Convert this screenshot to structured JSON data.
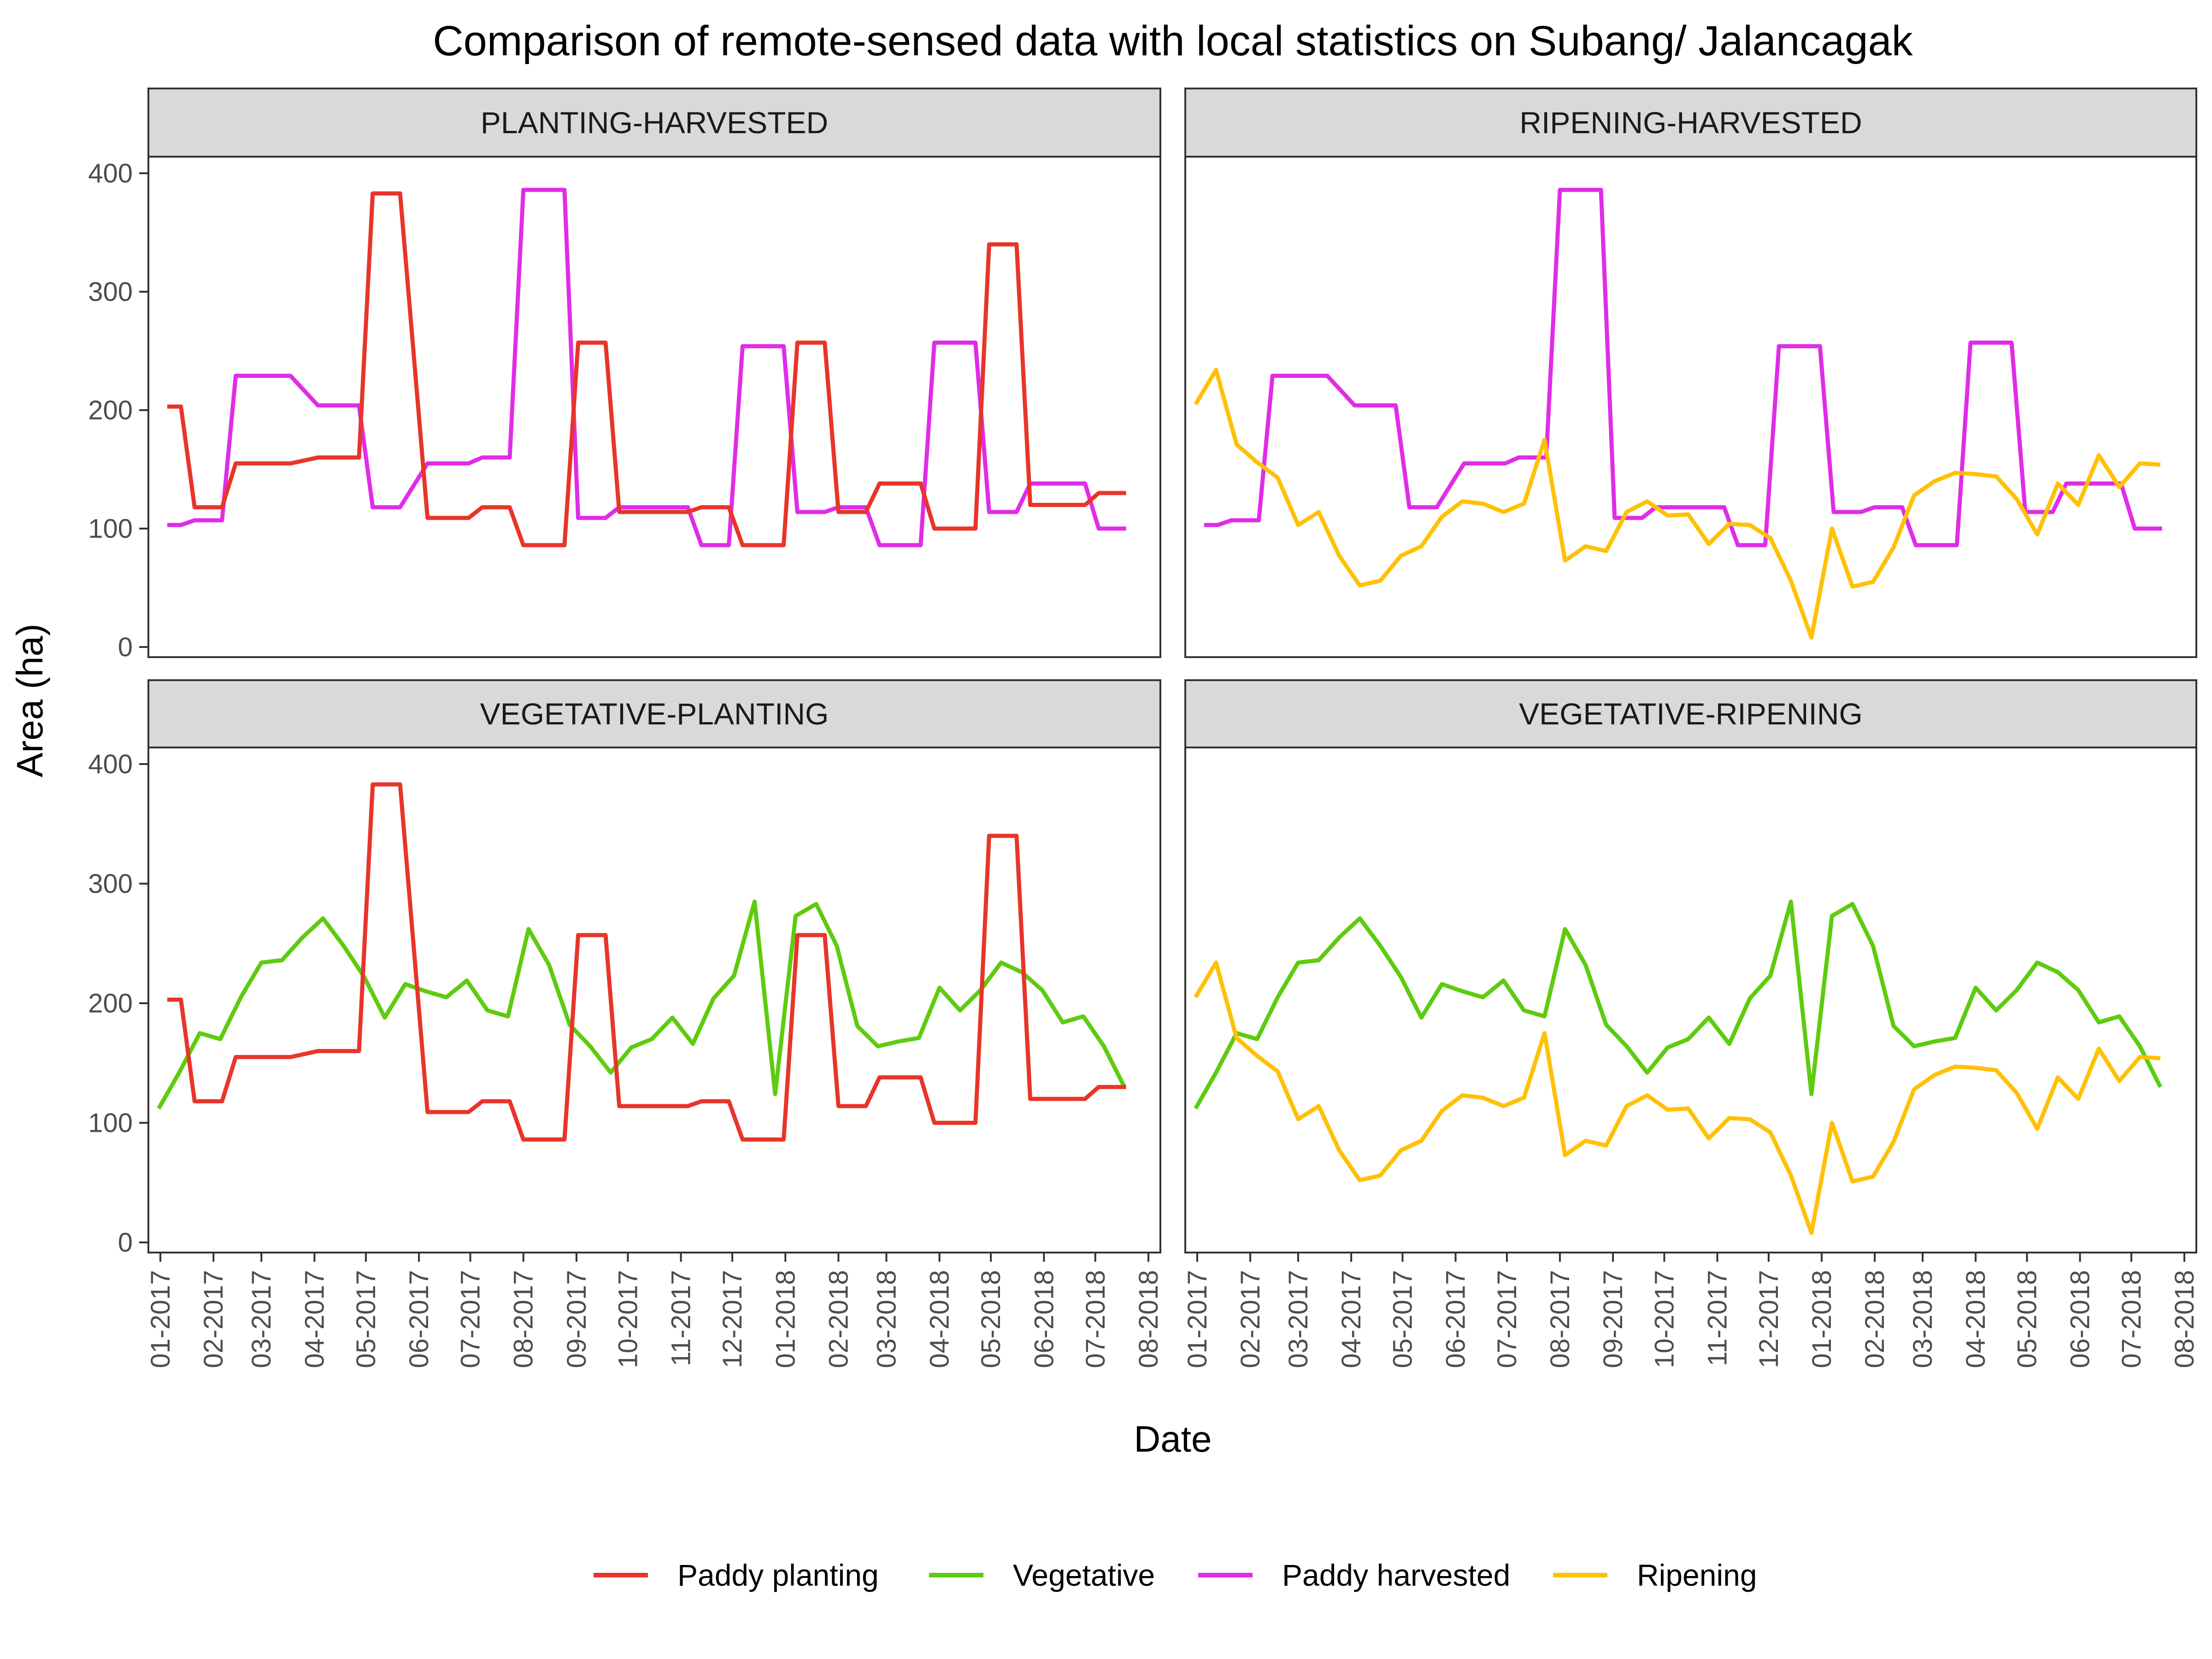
{
  "chart_data": {
    "type": "line",
    "title": "Comparison of remote-sensed data with local statistics on Subang/ Jalancagak",
    "xlabel": "Date",
    "ylabel": "Area (ha)",
    "ylim": [
      0,
      400
    ],
    "yticks": [
      0,
      100,
      200,
      300,
      400
    ],
    "xlim": [
      "2016-12-25",
      "2018-08-08"
    ],
    "xtick_labels": [
      "01-2017",
      "02-2017",
      "03-2017",
      "04-2017",
      "05-2017",
      "06-2017",
      "07-2017",
      "08-2017",
      "09-2017",
      "10-2017",
      "11-2017",
      "12-2017",
      "01-2018",
      "02-2018",
      "03-2018",
      "04-2018",
      "05-2018",
      "06-2018",
      "07-2018",
      "08-2018"
    ],
    "xtick_dates": [
      "2017-01-01",
      "2017-02-01",
      "2017-03-01",
      "2017-04-01",
      "2017-05-01",
      "2017-06-01",
      "2017-07-01",
      "2017-08-01",
      "2017-09-01",
      "2017-10-01",
      "2017-11-01",
      "2017-12-01",
      "2018-01-01",
      "2018-02-01",
      "2018-03-01",
      "2018-04-01",
      "2018-05-01",
      "2018-06-01",
      "2018-07-01",
      "2018-08-01"
    ],
    "grid": false,
    "legend_position": "bottom",
    "series": [
      {
        "name": "Paddy planting",
        "color": "#E8352A",
        "points": [
          [
            "2017-01-05",
            203
          ],
          [
            "2017-01-13",
            203
          ],
          [
            "2017-01-21",
            118
          ],
          [
            "2017-02-06",
            118
          ],
          [
            "2017-02-14",
            155
          ],
          [
            "2017-03-18",
            155
          ],
          [
            "2017-04-03",
            160
          ],
          [
            "2017-04-27",
            160
          ],
          [
            "2017-05-05",
            383
          ],
          [
            "2017-05-21",
            383
          ],
          [
            "2017-06-06",
            109
          ],
          [
            "2017-06-30",
            109
          ],
          [
            "2017-07-08",
            118
          ],
          [
            "2017-07-24",
            118
          ],
          [
            "2017-08-01",
            86
          ],
          [
            "2017-08-25",
            86
          ],
          [
            "2017-09-02",
            257
          ],
          [
            "2017-09-18",
            257
          ],
          [
            "2017-09-26",
            114
          ],
          [
            "2017-11-05",
            114
          ],
          [
            "2017-11-13",
            118
          ],
          [
            "2017-11-29",
            118
          ],
          [
            "2017-12-07",
            86
          ],
          [
            "2017-12-31",
            86
          ],
          [
            "2018-01-08",
            257
          ],
          [
            "2018-01-24",
            257
          ],
          [
            "2018-02-01",
            114
          ],
          [
            "2018-02-17",
            114
          ],
          [
            "2018-02-25",
            138
          ],
          [
            "2018-03-21",
            138
          ],
          [
            "2018-03-29",
            100
          ],
          [
            "2018-04-22",
            100
          ],
          [
            "2018-04-30",
            340
          ],
          [
            "2018-05-16",
            340
          ],
          [
            "2018-05-24",
            120
          ],
          [
            "2018-06-25",
            120
          ],
          [
            "2018-07-03",
            130
          ],
          [
            "2018-07-19",
            130
          ]
        ]
      },
      {
        "name": "Vegetative",
        "color": "#5ECB0F",
        "points": [
          [
            "2016-12-31",
            112
          ],
          [
            "2017-01-12",
            142
          ],
          [
            "2017-01-24",
            175
          ],
          [
            "2017-02-05",
            170
          ],
          [
            "2017-02-17",
            205
          ],
          [
            "2017-03-01",
            234
          ],
          [
            "2017-03-13",
            236
          ],
          [
            "2017-03-25",
            255
          ],
          [
            "2017-04-06",
            271
          ],
          [
            "2017-04-18",
            248
          ],
          [
            "2017-04-30",
            222
          ],
          [
            "2017-05-12",
            188
          ],
          [
            "2017-05-24",
            216
          ],
          [
            "2017-06-05",
            210
          ],
          [
            "2017-06-17",
            205
          ],
          [
            "2017-06-29",
            219
          ],
          [
            "2017-07-11",
            194
          ],
          [
            "2017-07-23",
            189
          ],
          [
            "2017-08-04",
            262
          ],
          [
            "2017-08-16",
            232
          ],
          [
            "2017-08-28",
            182
          ],
          [
            "2017-09-09",
            164
          ],
          [
            "2017-09-21",
            142
          ],
          [
            "2017-10-03",
            163
          ],
          [
            "2017-10-15",
            170
          ],
          [
            "2017-10-27",
            188
          ],
          [
            "2017-11-08",
            166
          ],
          [
            "2017-11-20",
            204
          ],
          [
            "2017-12-02",
            223
          ],
          [
            "2017-12-14",
            285
          ],
          [
            "2017-12-26",
            124
          ],
          [
            "2018-01-07",
            273
          ],
          [
            "2018-01-19",
            283
          ],
          [
            "2018-01-31",
            248
          ],
          [
            "2018-02-12",
            181
          ],
          [
            "2018-02-24",
            164
          ],
          [
            "2018-03-08",
            168
          ],
          [
            "2018-03-20",
            171
          ],
          [
            "2018-04-01",
            213
          ],
          [
            "2018-04-13",
            194
          ],
          [
            "2018-04-25",
            211
          ],
          [
            "2018-05-07",
            234
          ],
          [
            "2018-05-19",
            226
          ],
          [
            "2018-05-31",
            211
          ],
          [
            "2018-06-12",
            184
          ],
          [
            "2018-06-24",
            189
          ],
          [
            "2018-07-06",
            164
          ],
          [
            "2018-07-18",
            130
          ]
        ]
      },
      {
        "name": "Paddy harvested",
        "color": "#E02CE8",
        "points": [
          [
            "2017-01-05",
            103
          ],
          [
            "2017-01-13",
            103
          ],
          [
            "2017-01-21",
            107
          ],
          [
            "2017-02-06",
            107
          ],
          [
            "2017-02-14",
            229
          ],
          [
            "2017-03-18",
            229
          ],
          [
            "2017-04-03",
            204
          ],
          [
            "2017-04-27",
            204
          ],
          [
            "2017-05-05",
            118
          ],
          [
            "2017-05-21",
            118
          ],
          [
            "2017-06-06",
            155
          ],
          [
            "2017-06-30",
            155
          ],
          [
            "2017-07-08",
            160
          ],
          [
            "2017-07-24",
            160
          ],
          [
            "2017-08-01",
            386
          ],
          [
            "2017-08-25",
            386
          ],
          [
            "2017-09-02",
            109
          ],
          [
            "2017-09-18",
            109
          ],
          [
            "2017-09-26",
            118
          ],
          [
            "2017-11-05",
            118
          ],
          [
            "2017-11-13",
            86
          ],
          [
            "2017-11-29",
            86
          ],
          [
            "2017-12-07",
            254
          ],
          [
            "2017-12-31",
            254
          ],
          [
            "2018-01-08",
            114
          ],
          [
            "2018-01-24",
            114
          ],
          [
            "2018-02-01",
            118
          ],
          [
            "2018-02-17",
            118
          ],
          [
            "2018-02-25",
            86
          ],
          [
            "2018-03-21",
            86
          ],
          [
            "2018-03-29",
            257
          ],
          [
            "2018-04-22",
            257
          ],
          [
            "2018-04-30",
            114
          ],
          [
            "2018-05-16",
            114
          ],
          [
            "2018-05-24",
            138
          ],
          [
            "2018-06-25",
            138
          ],
          [
            "2018-07-03",
            100
          ],
          [
            "2018-07-19",
            100
          ]
        ]
      },
      {
        "name": "Ripening",
        "color": "#FFC107",
        "points": [
          [
            "2016-12-31",
            205
          ],
          [
            "2017-01-12",
            234
          ],
          [
            "2017-01-24",
            171
          ],
          [
            "2017-02-05",
            156
          ],
          [
            "2017-02-17",
            143
          ],
          [
            "2017-03-01",
            103
          ],
          [
            "2017-03-13",
            114
          ],
          [
            "2017-03-25",
            77
          ],
          [
            "2017-04-06",
            52
          ],
          [
            "2017-04-18",
            56
          ],
          [
            "2017-04-30",
            77
          ],
          [
            "2017-05-12",
            85
          ],
          [
            "2017-05-24",
            110
          ],
          [
            "2017-06-05",
            123
          ],
          [
            "2017-06-17",
            121
          ],
          [
            "2017-06-29",
            114
          ],
          [
            "2017-07-11",
            121
          ],
          [
            "2017-07-23",
            175
          ],
          [
            "2017-08-04",
            73
          ],
          [
            "2017-08-16",
            85
          ],
          [
            "2017-08-28",
            81
          ],
          [
            "2017-09-09",
            114
          ],
          [
            "2017-09-21",
            123
          ],
          [
            "2017-10-03",
            111
          ],
          [
            "2017-10-15",
            112
          ],
          [
            "2017-10-27",
            87
          ],
          [
            "2017-11-08",
            104
          ],
          [
            "2017-11-20",
            103
          ],
          [
            "2017-12-02",
            92
          ],
          [
            "2017-12-14",
            56
          ],
          [
            "2017-12-26",
            8
          ],
          [
            "2018-01-07",
            100
          ],
          [
            "2018-01-19",
            51
          ],
          [
            "2018-01-31",
            55
          ],
          [
            "2018-02-12",
            84
          ],
          [
            "2018-02-24",
            128
          ],
          [
            "2018-03-08",
            140
          ],
          [
            "2018-03-20",
            147
          ],
          [
            "2018-04-01",
            146
          ],
          [
            "2018-04-13",
            144
          ],
          [
            "2018-04-25",
            125
          ],
          [
            "2018-05-07",
            95
          ],
          [
            "2018-05-19",
            138
          ],
          [
            "2018-05-31",
            120
          ],
          [
            "2018-06-12",
            162
          ],
          [
            "2018-06-24",
            135
          ],
          [
            "2018-07-06",
            155
          ],
          [
            "2018-07-18",
            154
          ]
        ]
      }
    ],
    "panels": [
      {
        "label": "PLANTING-HARVESTED",
        "series": [
          "Paddy harvested",
          "Paddy planting"
        ]
      },
      {
        "label": "RIPENING-HARVESTED",
        "series": [
          "Paddy harvested",
          "Ripening"
        ]
      },
      {
        "label": "VEGETATIVE-PLANTING",
        "series": [
          "Vegetative",
          "Paddy planting"
        ]
      },
      {
        "label": "VEGETATIVE-RIPENING",
        "series": [
          "Vegetative",
          "Ripening"
        ]
      }
    ],
    "legend": [
      "Paddy planting",
      "Vegetative",
      "Paddy harvested",
      "Ripening"
    ]
  }
}
